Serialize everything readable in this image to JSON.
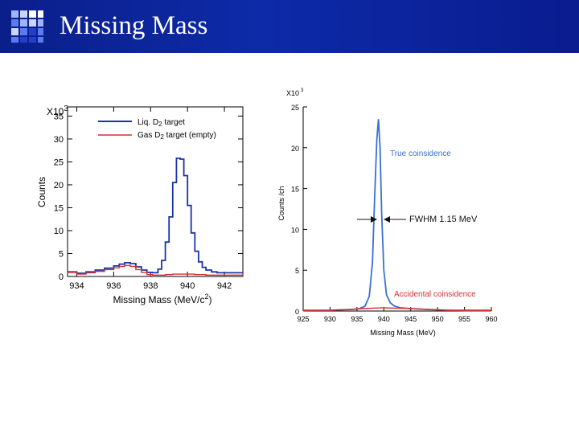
{
  "slide": {
    "title": "Missing Mass",
    "colors": {
      "title_bar": "#0d2aa8",
      "title_text": "#ffffff",
      "logo_light": "#9fb4ff",
      "logo_mid": "#5b7bf0",
      "logo_dark": "#233fc8"
    }
  },
  "chart_data": [
    {
      "type": "line",
      "title": "",
      "xlabel": "Missing Mass (MeV/c",
      "xlabel_sup": "2",
      "xlabel_close": ")",
      "ylabel": "Counts",
      "y_multiplier_base": "X10",
      "y_multiplier_exp": "3",
      "xlim": [
        933.5,
        943
      ],
      "ylim": [
        0,
        37
      ],
      "xticks": [
        934,
        936,
        938,
        940,
        942
      ],
      "yticks": [
        0,
        5,
        10,
        15,
        20,
        25,
        30,
        35
      ],
      "xtick_labels": [
        "934",
        "936",
        "938",
        "940",
        "942"
      ],
      "ytick_labels": [
        "0",
        "5",
        "10",
        "15",
        "20",
        "25",
        "30",
        "35"
      ],
      "legend_position": "top-right",
      "series": [
        {
          "name": "Liq. D2 target",
          "legend_parts": [
            "Liq. D",
            "2",
            " target"
          ],
          "color": "#1a33a8",
          "step": true,
          "x": [
            933.5,
            934,
            934.5,
            935,
            935.5,
            936,
            936.3,
            936.6,
            936.9,
            937.2,
            937.5,
            937.8,
            938.1,
            938.4,
            938.6,
            938.8,
            939.0,
            939.2,
            939.4,
            939.6,
            939.8,
            940.0,
            940.2,
            940.4,
            940.6,
            940.8,
            941.0,
            941.3,
            941.6,
            942,
            942.5,
            943
          ],
          "y": [
            1.0,
            0.7,
            1.0,
            1.4,
            1.8,
            2.3,
            2.7,
            3.0,
            2.8,
            2.1,
            1.4,
            0.9,
            0.8,
            1.6,
            3.5,
            7.5,
            13.0,
            20.5,
            25.8,
            25.6,
            22.0,
            15.5,
            9.5,
            5.5,
            3.2,
            2.0,
            1.4,
            1.0,
            0.8,
            0.8,
            0.8,
            0.8
          ]
        },
        {
          "name": "Gas D2 target (empty)",
          "legend_parts": [
            "Gas D",
            "2",
            " target (empty)"
          ],
          "color": "#d83030",
          "step": true,
          "x": [
            933.5,
            934,
            934.5,
            935,
            935.5,
            936,
            936.3,
            936.6,
            936.9,
            937.2,
            937.5,
            937.8,
            938.1,
            938.4,
            938.6,
            938.8,
            939.0,
            939.2,
            939.4,
            939.6,
            939.8,
            940.0,
            940.2,
            940.4,
            940.6,
            940.8,
            941.0,
            941.3,
            941.6,
            942,
            942.5,
            943
          ],
          "y": [
            0.9,
            0.5,
            0.8,
            1.1,
            1.5,
            1.9,
            2.2,
            2.4,
            2.2,
            1.5,
            0.9,
            0.4,
            0.3,
            0.3,
            0.3,
            0.4,
            0.4,
            0.5,
            0.5,
            0.5,
            0.5,
            0.5,
            0.5,
            0.4,
            0.4,
            0.4,
            0.3,
            0.3,
            0.3,
            0.3,
            0.3,
            0.3
          ]
        }
      ]
    },
    {
      "type": "line",
      "title": "",
      "xlabel": "Missing Mass (MeV)",
      "ylabel": "Counts /ch",
      "y_multiplier_base": "X10",
      "y_multiplier_exp": "3",
      "xlim": [
        925,
        960
      ],
      "ylim": [
        0,
        25
      ],
      "xticks": [
        925,
        930,
        935,
        940,
        945,
        950,
        955,
        960
      ],
      "yticks": [
        0,
        5,
        10,
        15,
        20,
        25
      ],
      "xtick_labels": [
        "925",
        "930",
        "935",
        "940",
        "945",
        "950",
        "955",
        "960"
      ],
      "ytick_labels": [
        "0",
        "5",
        "10",
        "15",
        "20",
        "25"
      ],
      "annotations": [
        {
          "text": "True coinsidence",
          "color": "#3a6fd8"
        },
        {
          "text": "FWHM 1.15 MeV",
          "color": "#111111"
        },
        {
          "text": "Accidental coinsidence",
          "color": "#d83030"
        }
      ],
      "series": [
        {
          "name": "True coinsidence",
          "color": "#3a6fd8",
          "step": false,
          "x": [
            925,
            930,
            934,
            935.5,
            936.5,
            937.3,
            937.9,
            938.3,
            938.7,
            939.0,
            939.3,
            939.6,
            940.0,
            940.5,
            941.2,
            942,
            943,
            945,
            948,
            952,
            956,
            960
          ],
          "y": [
            0.1,
            0.1,
            0.2,
            0.3,
            0.6,
            1.8,
            6.0,
            14.0,
            21.0,
            23.5,
            20.0,
            12.0,
            5.0,
            2.0,
            1.0,
            0.6,
            0.4,
            0.3,
            0.2,
            0.1,
            0.1,
            0.1
          ]
        },
        {
          "name": "Accidental coinsidence",
          "color": "#d83030",
          "step": false,
          "x": [
            925,
            930,
            934,
            936,
            938,
            940,
            942,
            945,
            948,
            950,
            952,
            955,
            960
          ],
          "y": [
            0.05,
            0.1,
            0.2,
            0.3,
            0.35,
            0.4,
            0.35,
            0.3,
            0.2,
            0.15,
            0.1,
            0.05,
            0.05
          ]
        }
      ]
    }
  ]
}
